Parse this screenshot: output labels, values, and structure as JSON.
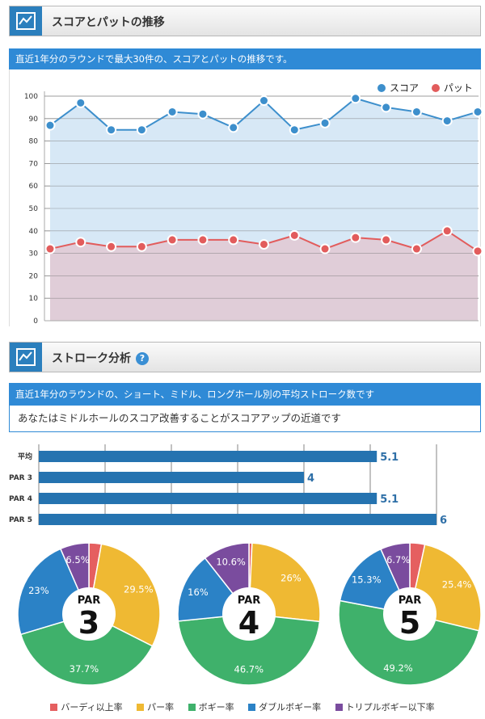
{
  "section1": {
    "title": "スコアとパットの推移",
    "info": "直近1年分のラウンドで最大30件の、スコアとパットの推移です。"
  },
  "section2": {
    "title": "ストローク分析",
    "help": "?",
    "info": "直近1年分のラウンドの、ショート、ミドル、ロングホール別の平均ストローク数です",
    "message": "あなたはミドルホールのスコア改善することがスコアアップの近道です"
  },
  "colors": {
    "score": "#3d8fcc",
    "putt": "#e25c5c",
    "score_fill": "#d7e8f6",
    "putt_fill": "#e0cdd8",
    "bar": "#2573b0",
    "birdie": "#e55f60",
    "par": "#efb933",
    "bogey": "#3fb16b",
    "double": "#2b82c6",
    "triple": "#7a4c9e",
    "header_blue": "#2f8ad6"
  },
  "chart_data": [
    {
      "type": "area",
      "ylim": [
        0,
        100
      ],
      "yticks": [
        "0",
        "10",
        "20",
        "30",
        "40",
        "50",
        "60",
        "70",
        "80",
        "90",
        "100"
      ],
      "legend": [
        {
          "name": "スコア",
          "color": "#3d8fcc"
        },
        {
          "name": "パット",
          "color": "#e25c5c"
        }
      ],
      "legend_position": "top-right",
      "grid": true,
      "series": [
        {
          "name": "スコア",
          "values": [
            87,
            97,
            85,
            85,
            93,
            92,
            86,
            98,
            85,
            88,
            99,
            95,
            93,
            89,
            93
          ]
        },
        {
          "name": "パット",
          "values": [
            32,
            35,
            33,
            33,
            36,
            36,
            36,
            34,
            38,
            32,
            37,
            36,
            32,
            40,
            31
          ]
        }
      ]
    },
    {
      "type": "bar",
      "orientation": "horizontal",
      "categories": [
        "平均",
        "PAR 3",
        "PAR 4",
        "PAR 5"
      ],
      "values": [
        5.1,
        4,
        5.1,
        6
      ],
      "value_labels": [
        "5.1",
        "4",
        "5.1",
        "6"
      ],
      "xlim": [
        0,
        6
      ],
      "grid": true
    },
    {
      "type": "pie",
      "charts": [
        {
          "label": "PAR",
          "number": "3",
          "slices": [
            {
              "name": "バーディ以上率",
              "value": 2.8,
              "label": ""
            },
            {
              "name": "パー率",
              "value": 29.5,
              "label": "29.5%"
            },
            {
              "name": "ボギー率",
              "value": 37.7,
              "label": "37.7%"
            },
            {
              "name": "ダブルボギー率",
              "value": 23,
              "label": "23%"
            },
            {
              "name": "トリプルボギー以下率",
              "value": 6.5,
              "label": "6.5%"
            }
          ]
        },
        {
          "label": "PAR",
          "number": "4",
          "slices": [
            {
              "name": "バーディ以上率",
              "value": 0.7,
              "label": ""
            },
            {
              "name": "パー率",
              "value": 26,
              "label": "26%"
            },
            {
              "name": "ボギー率",
              "value": 46.7,
              "label": "46.7%"
            },
            {
              "name": "ダブルボギー率",
              "value": 16,
              "label": "16%"
            },
            {
              "name": "トリプルボギー以下率",
              "value": 10.6,
              "label": "10.6%"
            }
          ]
        },
        {
          "label": "PAR",
          "number": "5",
          "slices": [
            {
              "name": "バーディ以上率",
              "value": 3.4,
              "label": ""
            },
            {
              "name": "パー率",
              "value": 25.4,
              "label": "25.4%"
            },
            {
              "name": "ボギー率",
              "value": 49.2,
              "label": "49.2%"
            },
            {
              "name": "ダブルボギー率",
              "value": 15.3,
              "label": "15.3%"
            },
            {
              "name": "トリプルボギー以下率",
              "value": 6.7,
              "label": "6.7%"
            }
          ]
        }
      ],
      "legend": [
        "バーディ以上率",
        "パー率",
        "ボギー率",
        "ダブルボギー率",
        "トリプルボギー以下率"
      ]
    }
  ]
}
